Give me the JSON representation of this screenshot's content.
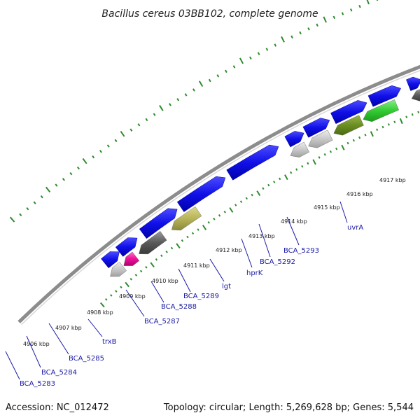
{
  "title": "Bacillus cereus 03BB102, complete genome",
  "footer": {
    "accession": "Accession: NC_012472",
    "summary": "Topology: circular; Length: 5,269,628 bp; Genes: 5,544"
  },
  "scale_labels": [
    "4906 kbp",
    "4907 kbp",
    "4908 kbp",
    "4909 kbp",
    "4910 kbp",
    "4911 kbp",
    "4912 kbp",
    "4913 kbp",
    "4914 kbp",
    "4915 kbp",
    "4916 kbp",
    "4917 kbp"
  ],
  "gene_labels": [
    "BCA_5283",
    "BCA_5284",
    "BCA_5285",
    "trxB",
    "BCA_5287",
    "BCA_5288",
    "BCA_5289",
    "lgt",
    "hprK",
    "BCA_5292",
    "BCA_5293",
    "uvrA"
  ],
  "colors": {
    "backbone": "#8c8c8c",
    "cds_forward": "#1010e8",
    "cds_reverse": "#5a5a5a",
    "light_gray": "#c8c8c8",
    "olive": "#b8b45a",
    "dark_olive": "#6b8e23",
    "green": "#33cc33",
    "magenta": "#ee1199",
    "tick": "#2e8b2e",
    "label": "#1a1aa6"
  }
}
